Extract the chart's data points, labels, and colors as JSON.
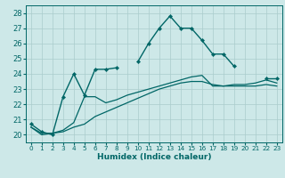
{
  "title": "",
  "xlabel": "Humidex (Indice chaleur)",
  "ylabel": "",
  "bg_color": "#cde8e8",
  "grid_color": "#aacccc",
  "line_color": "#006666",
  "xlim": [
    -0.5,
    23.5
  ],
  "ylim": [
    19.5,
    28.5
  ],
  "yticks": [
    20,
    21,
    22,
    23,
    24,
    25,
    26,
    27,
    28
  ],
  "xticks": [
    0,
    1,
    2,
    3,
    4,
    5,
    6,
    7,
    8,
    9,
    10,
    11,
    12,
    13,
    14,
    15,
    16,
    17,
    18,
    19,
    20,
    21,
    22,
    23
  ],
  "line1_y": [
    20.7,
    20.2,
    20.0,
    22.5,
    24.0,
    22.6,
    24.3,
    24.3,
    24.4,
    null,
    24.8,
    26.0,
    27.0,
    27.8,
    27.0,
    27.0,
    26.2,
    25.3,
    25.3,
    24.5,
    null,
    null,
    23.7,
    23.7
  ],
  "line2_y": [
    20.5,
    20.1,
    20.1,
    20.2,
    20.5,
    20.7,
    21.2,
    21.5,
    21.8,
    22.1,
    22.4,
    22.7,
    23.0,
    23.2,
    23.4,
    23.5,
    23.5,
    23.3,
    23.2,
    23.2,
    23.2,
    23.2,
    23.3,
    23.2
  ],
  "line3_y": [
    20.5,
    20.0,
    20.1,
    20.3,
    20.8,
    22.5,
    22.5,
    22.1,
    22.3,
    22.6,
    22.8,
    23.0,
    23.2,
    23.4,
    23.6,
    23.8,
    23.9,
    23.2,
    23.2,
    23.3,
    23.3,
    23.4,
    23.6,
    23.4
  ]
}
